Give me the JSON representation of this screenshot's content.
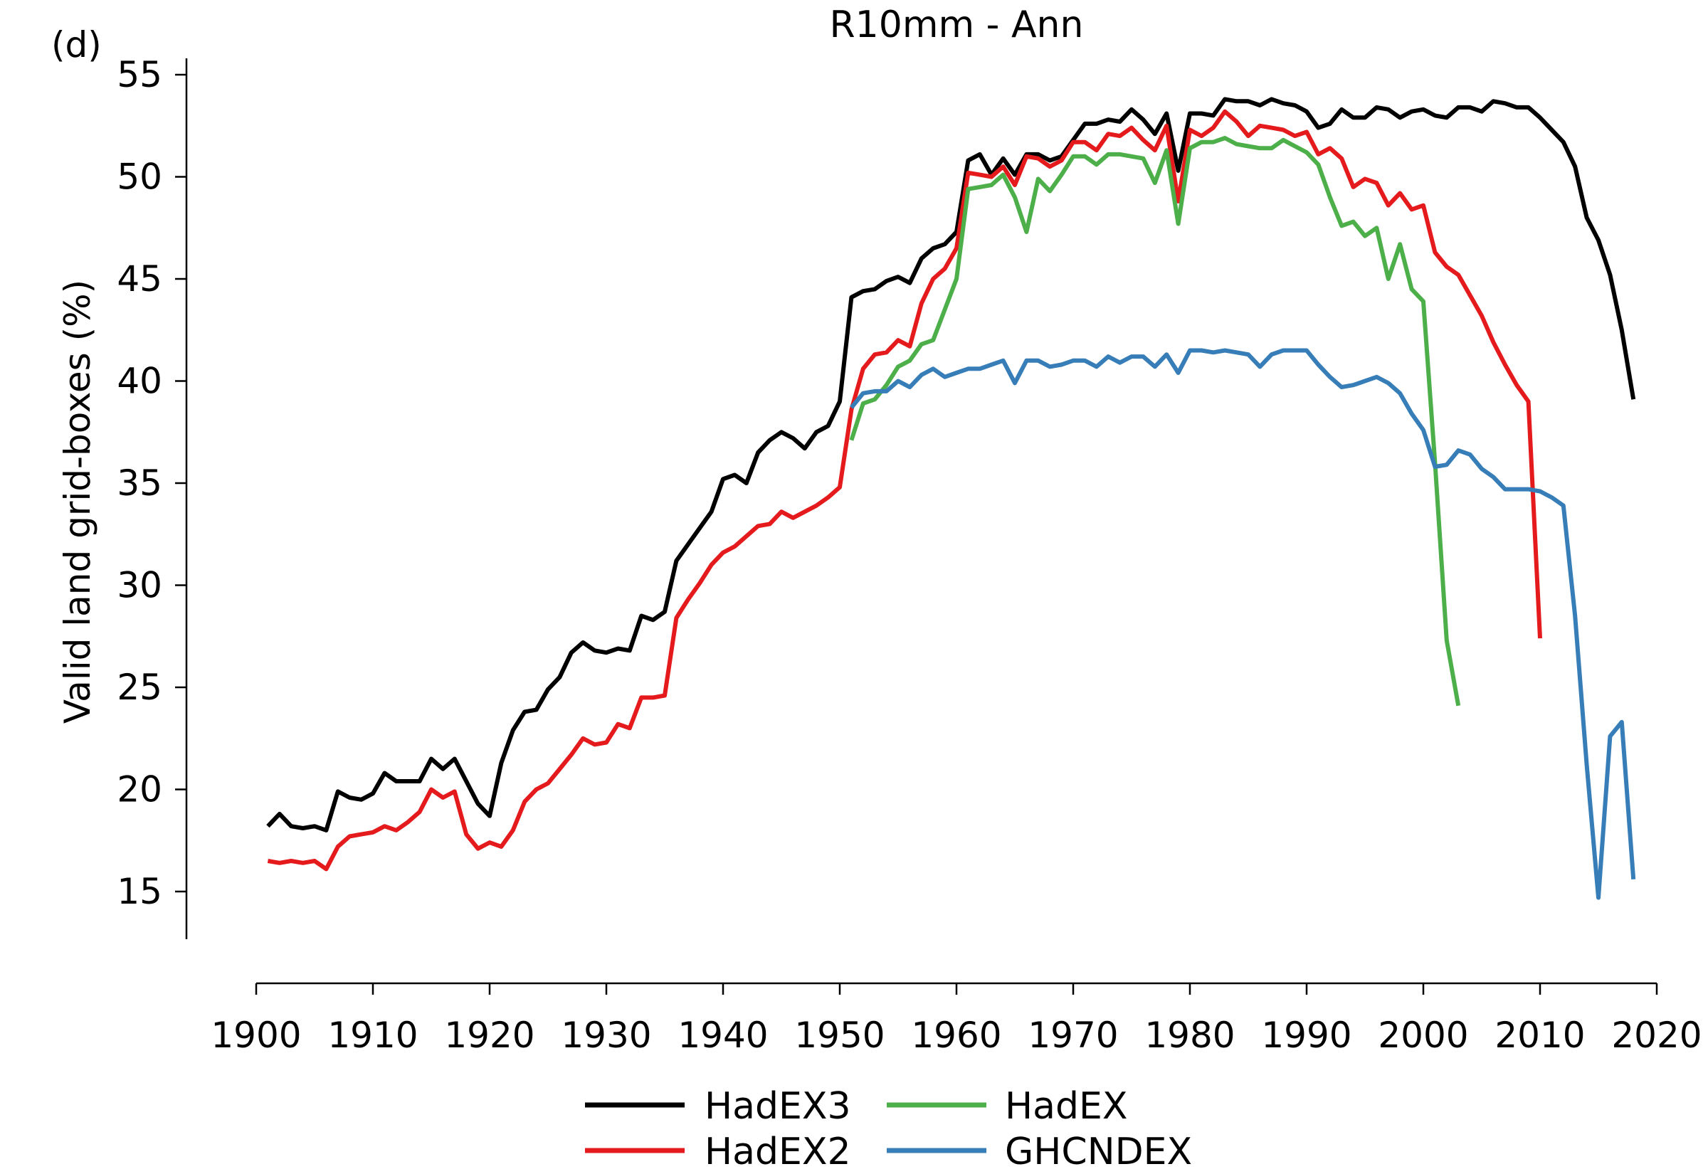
{
  "panel_label": "(d)",
  "chart_data": {
    "type": "line",
    "title": "R10mm - Ann",
    "xlabel": "",
    "ylabel": "Valid land grid-boxes (%)",
    "xlim": [
      1900,
      2020
    ],
    "ylim": [
      12.5,
      56
    ],
    "xticks": [
      1900,
      1910,
      1920,
      1930,
      1940,
      1950,
      1960,
      1970,
      1980,
      1990,
      2000,
      2010,
      2020
    ],
    "yticks": [
      15,
      20,
      25,
      30,
      35,
      40,
      45,
      50,
      55
    ],
    "grid": false,
    "legend_position": "bottom",
    "series": [
      {
        "name": "HadEX3",
        "color": "#000000",
        "x": [
          1901,
          1902,
          1903,
          1904,
          1905,
          1906,
          1907,
          1908,
          1909,
          1910,
          1911,
          1912,
          1913,
          1914,
          1915,
          1916,
          1917,
          1918,
          1919,
          1920,
          1921,
          1922,
          1923,
          1924,
          1925,
          1926,
          1927,
          1928,
          1929,
          1930,
          1931,
          1932,
          1933,
          1934,
          1935,
          1936,
          1937,
          1938,
          1939,
          1940,
          1941,
          1942,
          1943,
          1944,
          1945,
          1946,
          1947,
          1948,
          1949,
          1950,
          1951,
          1952,
          1953,
          1954,
          1955,
          1956,
          1957,
          1958,
          1959,
          1960,
          1961,
          1962,
          1963,
          1964,
          1965,
          1966,
          1967,
          1968,
          1969,
          1970,
          1971,
          1972,
          1973,
          1974,
          1975,
          1976,
          1977,
          1978,
          1979,
          1980,
          1981,
          1982,
          1983,
          1984,
          1985,
          1986,
          1987,
          1988,
          1989,
          1990,
          1991,
          1992,
          1993,
          1994,
          1995,
          1996,
          1997,
          1998,
          1999,
          2000,
          2001,
          2002,
          2003,
          2004,
          2005,
          2006,
          2007,
          2008,
          2009,
          2010,
          2011,
          2012,
          2013,
          2014,
          2015,
          2016,
          2017,
          2018
        ],
        "y": [
          18.2,
          18.8,
          18.2,
          18.1,
          18.2,
          18.0,
          19.9,
          19.6,
          19.5,
          19.8,
          20.8,
          20.4,
          20.4,
          20.4,
          21.5,
          21.0,
          21.5,
          20.4,
          19.3,
          18.7,
          21.3,
          22.9,
          23.8,
          23.9,
          24.9,
          25.5,
          26.7,
          27.2,
          26.8,
          26.7,
          26.9,
          26.8,
          28.5,
          28.3,
          28.7,
          31.2,
          32.0,
          32.8,
          33.6,
          35.2,
          35.4,
          35.0,
          36.5,
          37.1,
          37.5,
          37.2,
          36.7,
          37.5,
          37.8,
          39.0,
          44.1,
          44.4,
          44.5,
          44.9,
          45.1,
          44.8,
          46.0,
          46.5,
          46.7,
          47.3,
          50.8,
          51.1,
          50.1,
          50.9,
          50.1,
          51.1,
          51.1,
          50.8,
          51.0,
          51.8,
          52.6,
          52.6,
          52.8,
          52.7,
          53.3,
          52.8,
          52.1,
          53.1,
          50.3,
          53.1,
          53.1,
          53.0,
          53.8,
          53.7,
          53.7,
          53.5,
          53.8,
          53.6,
          53.5,
          53.2,
          52.4,
          52.6,
          53.3,
          52.9,
          52.9,
          53.4,
          53.3,
          52.9,
          53.2,
          53.3,
          53.0,
          52.9,
          53.4,
          53.4,
          53.2,
          53.7,
          53.6,
          53.4,
          53.4,
          52.9,
          52.3,
          51.7,
          50.5,
          48.0,
          46.9,
          45.2,
          42.5,
          39.1
        ]
      },
      {
        "name": "HadEX2",
        "color": "#e41a1c",
        "x": [
          1901,
          1902,
          1903,
          1904,
          1905,
          1906,
          1907,
          1908,
          1909,
          1910,
          1911,
          1912,
          1913,
          1914,
          1915,
          1916,
          1917,
          1918,
          1919,
          1920,
          1921,
          1922,
          1923,
          1924,
          1925,
          1926,
          1927,
          1928,
          1929,
          1930,
          1931,
          1932,
          1933,
          1934,
          1935,
          1936,
          1937,
          1938,
          1939,
          1940,
          1941,
          1942,
          1943,
          1944,
          1945,
          1946,
          1947,
          1948,
          1949,
          1950,
          1951,
          1952,
          1953,
          1954,
          1955,
          1956,
          1957,
          1958,
          1959,
          1960,
          1961,
          1962,
          1963,
          1964,
          1965,
          1966,
          1967,
          1968,
          1969,
          1970,
          1971,
          1972,
          1973,
          1974,
          1975,
          1976,
          1977,
          1978,
          1979,
          1980,
          1981,
          1982,
          1983,
          1984,
          1985,
          1986,
          1987,
          1988,
          1989,
          1990,
          1991,
          1992,
          1993,
          1994,
          1995,
          1996,
          1997,
          1998,
          1999,
          2000,
          2001,
          2002,
          2003,
          2004,
          2005,
          2006,
          2007,
          2008,
          2009,
          2010
        ],
        "y": [
          16.5,
          16.4,
          16.5,
          16.4,
          16.5,
          16.1,
          17.2,
          17.7,
          17.8,
          17.9,
          18.2,
          18.0,
          18.4,
          18.9,
          20.0,
          19.6,
          19.9,
          17.8,
          17.1,
          17.4,
          17.2,
          18.0,
          19.4,
          20.0,
          20.3,
          21.0,
          21.7,
          22.5,
          22.2,
          22.3,
          23.2,
          23.0,
          24.5,
          24.5,
          24.6,
          28.4,
          29.3,
          30.1,
          31.0,
          31.6,
          31.9,
          32.4,
          32.9,
          33.0,
          33.6,
          33.3,
          33.6,
          33.9,
          34.3,
          34.8,
          38.6,
          40.6,
          41.3,
          41.4,
          42.0,
          41.7,
          43.8,
          45.0,
          45.5,
          46.5,
          50.2,
          50.1,
          50.0,
          50.5,
          49.6,
          51.0,
          50.9,
          50.5,
          50.8,
          51.7,
          51.7,
          51.3,
          52.1,
          52.0,
          52.4,
          51.8,
          51.3,
          52.5,
          48.8,
          52.3,
          52.0,
          52.4,
          53.2,
          52.7,
          52.0,
          52.5,
          52.4,
          52.3,
          52.0,
          52.2,
          51.1,
          51.4,
          50.9,
          49.5,
          49.9,
          49.7,
          48.6,
          49.2,
          48.4,
          48.6,
          46.3,
          45.6,
          45.2,
          44.2,
          43.2,
          41.9,
          40.8,
          39.8,
          39.0,
          27.4
        ]
      },
      {
        "name": "HadEX",
        "color": "#4daf4a",
        "x": [
          1951,
          1952,
          1953,
          1954,
          1955,
          1956,
          1957,
          1958,
          1959,
          1960,
          1961,
          1962,
          1963,
          1964,
          1965,
          1966,
          1967,
          1968,
          1969,
          1970,
          1971,
          1972,
          1973,
          1974,
          1975,
          1976,
          1977,
          1978,
          1979,
          1980,
          1981,
          1982,
          1983,
          1984,
          1985,
          1986,
          1987,
          1988,
          1989,
          1990,
          1991,
          1992,
          1993,
          1994,
          1995,
          1996,
          1997,
          1998,
          1999,
          2000,
          2001,
          2002,
          2003
        ],
        "y": [
          37.1,
          38.9,
          39.1,
          39.8,
          40.7,
          41.0,
          41.8,
          42.0,
          43.5,
          45.0,
          49.4,
          49.5,
          49.6,
          50.1,
          49.0,
          47.3,
          49.9,
          49.3,
          50.1,
          51.0,
          51.0,
          50.6,
          51.1,
          51.1,
          51.0,
          50.9,
          49.7,
          51.3,
          47.7,
          51.4,
          51.7,
          51.7,
          51.9,
          51.6,
          51.5,
          51.4,
          51.4,
          51.8,
          51.5,
          51.2,
          50.6,
          49.0,
          47.6,
          47.8,
          47.1,
          47.5,
          45.0,
          46.7,
          44.5,
          43.9,
          36.0,
          27.3,
          24.1
        ]
      },
      {
        "name": "GHCNDEX",
        "color": "#377eb8",
        "x": [
          1951,
          1952,
          1953,
          1954,
          1955,
          1956,
          1957,
          1958,
          1959,
          1960,
          1961,
          1962,
          1963,
          1964,
          1965,
          1966,
          1967,
          1968,
          1969,
          1970,
          1971,
          1972,
          1973,
          1974,
          1975,
          1976,
          1977,
          1978,
          1979,
          1980,
          1981,
          1982,
          1983,
          1984,
          1985,
          1986,
          1987,
          1988,
          1989,
          1990,
          1991,
          1992,
          1993,
          1994,
          1995,
          1996,
          1997,
          1998,
          1999,
          2000,
          2001,
          2002,
          2003,
          2004,
          2005,
          2006,
          2007,
          2008,
          2009,
          2010,
          2011,
          2012,
          2013,
          2014,
          2015,
          2016,
          2017,
          2018
        ],
        "y": [
          38.7,
          39.4,
          39.5,
          39.5,
          40.0,
          39.7,
          40.3,
          40.6,
          40.2,
          40.4,
          40.6,
          40.6,
          40.8,
          41.0,
          39.9,
          41.0,
          41.0,
          40.7,
          40.8,
          41.0,
          41.0,
          40.7,
          41.2,
          40.9,
          41.2,
          41.2,
          40.7,
          41.3,
          40.4,
          41.5,
          41.5,
          41.4,
          41.5,
          41.4,
          41.3,
          40.7,
          41.3,
          41.5,
          41.5,
          41.5,
          40.8,
          40.2,
          39.7,
          39.8,
          40.0,
          40.2,
          39.9,
          39.4,
          38.4,
          37.6,
          35.8,
          35.9,
          36.6,
          36.4,
          35.7,
          35.3,
          34.7,
          34.7,
          34.7,
          34.6,
          34.3,
          33.9,
          28.5,
          21.2,
          14.7,
          22.6,
          23.3,
          15.6
        ]
      }
    ]
  }
}
